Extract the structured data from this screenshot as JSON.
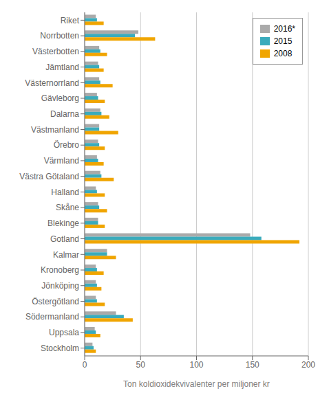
{
  "chart_data": {
    "type": "bar",
    "orientation": "horizontal",
    "categories": [
      "Riket",
      "Norrbotten",
      "Västerbotten",
      "Jämtland",
      "Västernorrland",
      "Gävleborg",
      "Dalarna",
      "Västmanland",
      "Örebro",
      "Värmland",
      "Västra Götaland",
      "Halland",
      "Skåne",
      "Blekinge",
      "Gotland",
      "Kalmar",
      "Kronoberg",
      "Jönköping",
      "Östergötland",
      "Södermanland",
      "Uppsala",
      "Stockholm"
    ],
    "series": [
      {
        "name": "2016*",
        "color": "#aaaaaa",
        "values": [
          10,
          48,
          13,
          12,
          13,
          11,
          14,
          13,
          12,
          11,
          14,
          10,
          12,
          12,
          148,
          20,
          10,
          10,
          10,
          28,
          9,
          7
        ]
      },
      {
        "name": "2015",
        "color": "#3aabbc",
        "values": [
          11,
          45,
          14,
          13,
          14,
          12,
          15,
          13,
          13,
          12,
          15,
          11,
          13,
          12,
          158,
          20,
          11,
          11,
          11,
          35,
          10,
          8
        ]
      },
      {
        "name": "2008",
        "color": "#f0a500",
        "values": [
          17,
          63,
          20,
          17,
          25,
          18,
          22,
          30,
          18,
          17,
          26,
          18,
          20,
          18,
          192,
          28,
          17,
          15,
          18,
          43,
          14,
          10
        ]
      }
    ],
    "xlabel": "Ton  koldioxidekvivalenter  per miljoner  kr",
    "xlim": [
      0,
      200
    ],
    "xticks": [
      0,
      50,
      100,
      150,
      200
    ],
    "grid": true,
    "legend": "upper right"
  }
}
